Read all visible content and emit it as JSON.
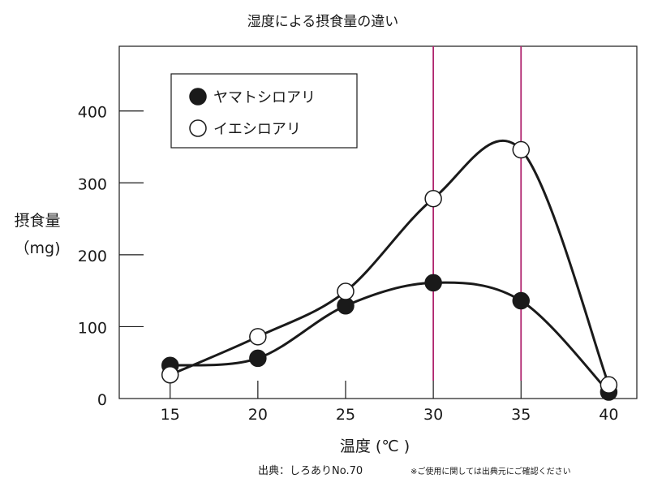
{
  "colors": {
    "ink": "#1a1a1a",
    "guide": "#b0246e",
    "open_fill": "#ffffff"
  },
  "chart_data": {
    "type": "line",
    "title": "湿度による摂食量の違い",
    "xlabel": "温度 (℃ )",
    "ylabel": "摂食量",
    "ylabel_unit": "（mg)",
    "x": [
      15,
      20,
      25,
      30,
      35,
      40
    ],
    "xticks": [
      15,
      20,
      25,
      30,
      35,
      40
    ],
    "xtick_labels": [
      "15",
      "20",
      "25",
      "30",
      "35",
      "40"
    ],
    "yticks": [
      0,
      100,
      200,
      300,
      400
    ],
    "ytick_labels": [
      "0",
      "100",
      "200",
      "300",
      "400"
    ],
    "xlim": [
      12.1,
      41.6
    ],
    "ylim": [
      0,
      490
    ],
    "guide_lines_x": [
      30,
      35
    ],
    "legend_position": "top-left",
    "series": [
      {
        "name": "ヤマトシロアリ",
        "marker": "filled",
        "values": [
          46,
          56,
          129,
          161,
          136,
          9
        ]
      },
      {
        "name": "イエシロアリ",
        "marker": "open",
        "values": [
          33,
          86,
          149,
          278,
          346,
          19
        ]
      }
    ],
    "source_note": "出典：しろありNo.70",
    "permission_note": "※ご使用に関しては出典元にご確認ください"
  }
}
